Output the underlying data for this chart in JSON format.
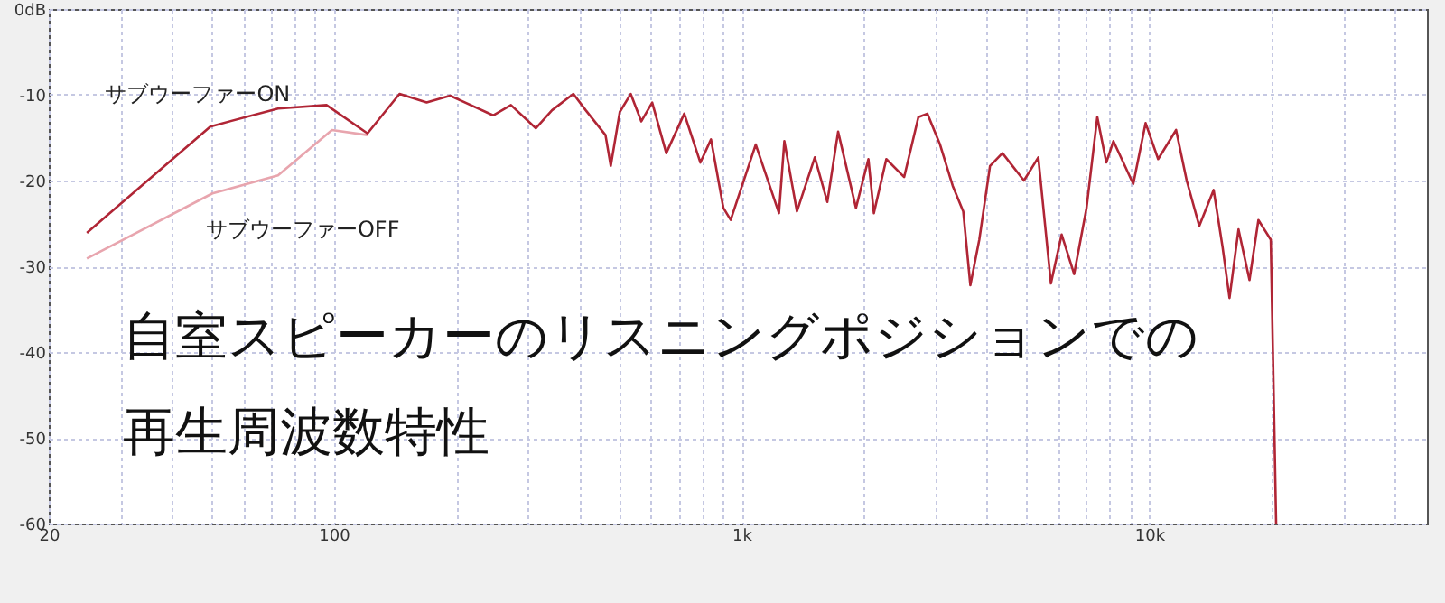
{
  "chart_data": {
    "type": "line",
    "title": "自室スピーカーのリスニングポジションでの再生周波数特性",
    "series": [
      {
        "name": "サブウーファーON",
        "color": "#b02535",
        "x": [
          24.8,
          49.8,
          73,
          96,
          121,
          145,
          169,
          193,
          246,
          272,
          313,
          343,
          387,
          415,
          464,
          478,
          503,
          535,
          568,
          604,
          654,
          724,
          793,
          842,
          903,
          941,
          1084,
          1236,
          1274,
          1368,
          1513,
          1624,
          1726,
          1909,
          2048,
          2112,
          2266,
          2506,
          2716,
          2858,
          3069,
          3296,
          3499,
          3642,
          3831,
          4070,
          4366,
          4929,
          5346,
          5741,
          6100,
          6546,
          7020,
          7460,
          7850,
          8170,
          9140,
          9800,
          10520,
          11640,
          12360,
          13270,
          14390,
          15140,
          15740,
          16560,
          17620,
          18530,
          19870,
          20480
        ],
        "values": [
          -26.1,
          -13.7,
          -11.6,
          -11.2,
          -14.5,
          -9.9,
          -10.9,
          -10.1,
          -12.4,
          -11.2,
          -13.9,
          -11.8,
          -9.9,
          -11.8,
          -14.7,
          -18.3,
          -12.0,
          -9.9,
          -13.1,
          -10.9,
          -16.8,
          -12.2,
          -17.9,
          -15.2,
          -23.2,
          -24.6,
          -15.8,
          -23.8,
          -15.4,
          -23.6,
          -17.3,
          -22.5,
          -14.3,
          -23.2,
          -17.5,
          -23.8,
          -17.5,
          -19.6,
          -12.6,
          -12.2,
          -15.8,
          -20.6,
          -23.6,
          -32.2,
          -26.9,
          -18.3,
          -16.8,
          -20.0,
          -17.3,
          -32.0,
          -26.3,
          -30.9,
          -23.2,
          -12.6,
          -17.9,
          -15.4,
          -20.4,
          -13.3,
          -17.5,
          -14.1,
          -20.0,
          -25.3,
          -21.1,
          -27.8,
          -33.7,
          -25.7,
          -31.6,
          -24.6,
          -26.9,
          -60
        ]
      },
      {
        "name": "サブウーファーOFF",
        "color": "#e8a5ae",
        "x": [
          24.8,
          50.4,
          73,
          99,
          121
        ],
        "values": [
          -29.1,
          -21.5,
          -19.4,
          -14.1,
          -14.7
        ]
      }
    ],
    "xlim": [
      20,
      48000
    ],
    "ylim": [
      -60,
      0
    ],
    "log": "x",
    "xticks": [
      20,
      {
        "value": 30,
        "label": null
      },
      {
        "value": 40,
        "label": null
      },
      {
        "value": 50,
        "label": null
      },
      {
        "value": 60,
        "label": null
      },
      {
        "value": 70,
        "label": null
      },
      {
        "value": 80,
        "label": null
      },
      {
        "value": 90,
        "label": null
      },
      100,
      {
        "value": 200,
        "label": null
      },
      {
        "value": 300,
        "label": null
      },
      {
        "value": 400,
        "label": null
      },
      {
        "value": 500,
        "label": null
      },
      {
        "value": 600,
        "label": null
      },
      {
        "value": 700,
        "label": null
      },
      {
        "value": 800,
        "label": null
      },
      {
        "value": 900,
        "label": null
      },
      {
        "value": 1000,
        "label": "1k"
      },
      {
        "value": 2000,
        "label": null
      },
      {
        "value": 3000,
        "label": null
      },
      {
        "value": 4000,
        "label": null
      },
      {
        "value": 5000,
        "label": null
      },
      {
        "value": 6000,
        "label": null
      },
      {
        "value": 7000,
        "label": null
      },
      {
        "value": 8000,
        "label": null
      },
      {
        "value": 9000,
        "label": null
      },
      {
        "value": 10000,
        "label": "10k"
      },
      {
        "value": 20000,
        "label": null
      },
      {
        "value": 30000,
        "label": null
      },
      {
        "value": 40000,
        "label": null
      }
    ],
    "yticks": [
      {
        "value": 0,
        "label": "0dB"
      },
      -10,
      -20,
      -30,
      -40,
      -50,
      -60
    ],
    "grid": true,
    "marker": "none",
    "line_style": "solid"
  }
}
